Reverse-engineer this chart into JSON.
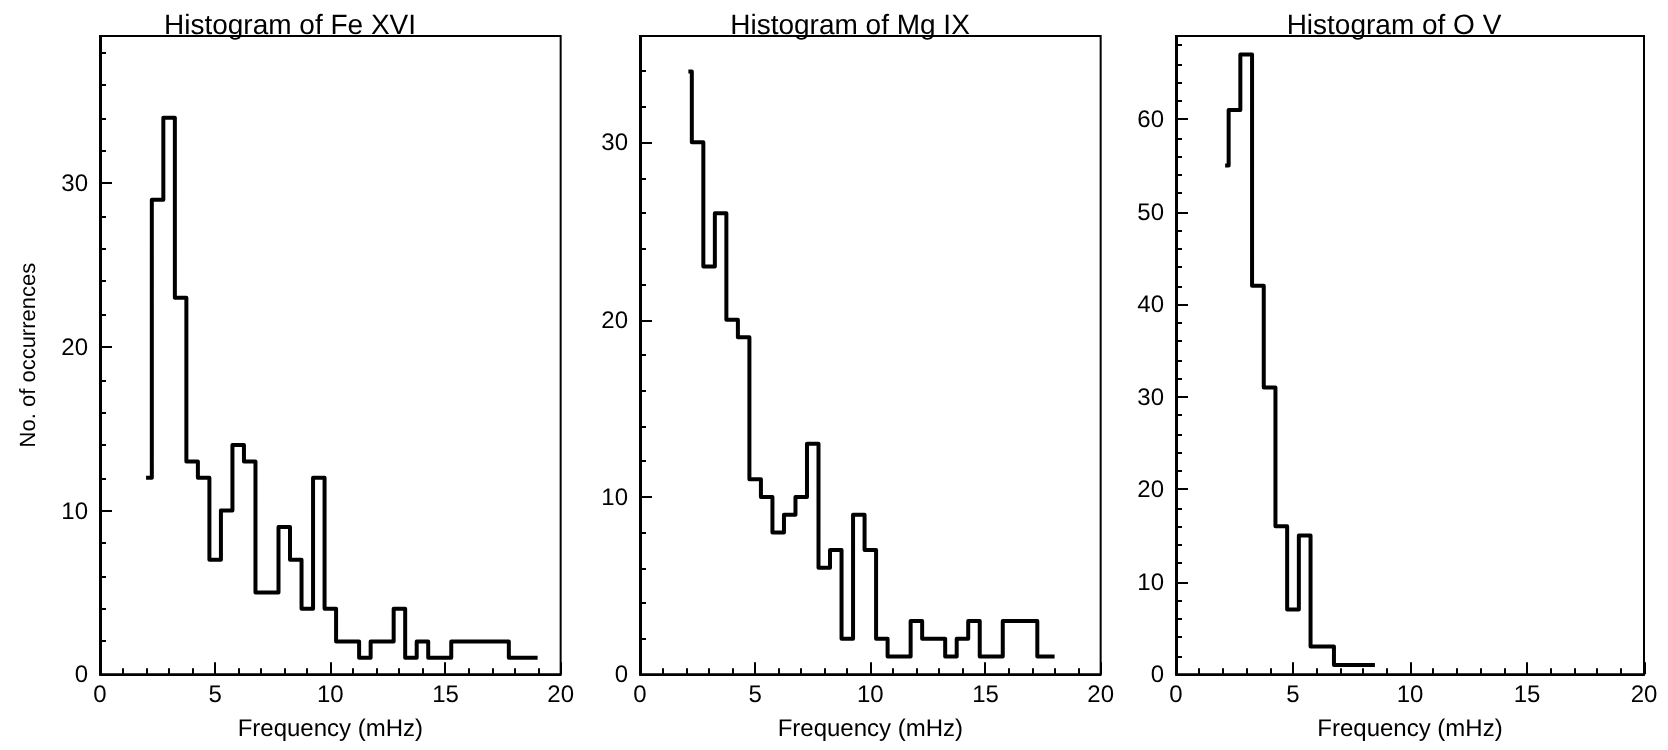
{
  "chart_data": [
    {
      "type": "histogram",
      "title": "Histogram of Fe XVI",
      "xlabel": "Frequency (mHz)",
      "ylabel": "No. of occurrences",
      "color": "#000000",
      "bins": [
        2.0,
        2.25,
        2.75,
        3.25,
        3.75,
        4.25,
        4.75,
        5.25,
        5.75,
        6.25,
        6.75,
        7.25,
        7.75,
        8.25,
        8.75,
        9.25,
        9.75,
        10.25,
        10.75,
        11.25,
        11.75,
        12.25,
        12.75,
        13.25,
        13.75,
        14.25,
        14.75,
        15.25,
        15.75,
        16.25,
        16.75,
        17.25,
        17.75,
        18.25,
        18.75,
        19.0
      ],
      "values": [
        12,
        29,
        34,
        23,
        13,
        12,
        7,
        10,
        14,
        13,
        5,
        5,
        9,
        7,
        4,
        12,
        4,
        2,
        2,
        1,
        2,
        2,
        4,
        1,
        2,
        1,
        1,
        2,
        2,
        2,
        2,
        2,
        1,
        1,
        1
      ],
      "xlim": [
        0,
        20
      ],
      "xticks": [
        0,
        5,
        10,
        15,
        20
      ],
      "ylim": [
        0,
        39
      ],
      "yticks": [
        0,
        10,
        20,
        30
      ],
      "grid": false
    },
    {
      "type": "histogram",
      "title": "Histogram of Mg IX",
      "xlabel": "Frequency (mHz)",
      "color": "#000000",
      "bins": [
        2.1,
        2.25,
        2.75,
        3.25,
        3.75,
        4.25,
        4.75,
        5.25,
        5.75,
        6.25,
        6.75,
        7.25,
        7.75,
        8.25,
        8.75,
        9.25,
        9.75,
        10.25,
        10.75,
        11.25,
        11.75,
        12.25,
        12.75,
        13.25,
        13.75,
        14.25,
        14.75,
        15.25,
        15.75,
        16.25,
        16.75,
        17.25,
        17.75,
        18.0
      ],
      "values": [
        34,
        30,
        23,
        26,
        20,
        19,
        11,
        10,
        8,
        9,
        10,
        13,
        6,
        7,
        2,
        9,
        7,
        2,
        1,
        1,
        3,
        2,
        2,
        1,
        2,
        3,
        1,
        1,
        3,
        3,
        3,
        1,
        1
      ],
      "xlim": [
        0,
        20
      ],
      "xticks": [
        0,
        5,
        10,
        15,
        20
      ],
      "ylim": [
        0,
        36
      ],
      "yticks": [
        0,
        10,
        20,
        30
      ],
      "grid": false
    },
    {
      "type": "histogram",
      "title": "Histogram of O V",
      "xlabel": "Frequency (mHz)",
      "color": "#000000",
      "bins": [
        2.1,
        2.25,
        2.75,
        3.25,
        3.75,
        4.25,
        4.75,
        5.25,
        5.75,
        6.25,
        6.75,
        7.25,
        7.75,
        8.25,
        8.5
      ],
      "values": [
        55,
        61,
        67,
        42,
        31,
        16,
        7,
        15,
        3,
        3,
        1,
        1,
        1,
        1
      ],
      "xlim": [
        0,
        20
      ],
      "xticks": [
        0,
        5,
        10,
        15,
        20
      ],
      "ylim": [
        0,
        69
      ],
      "yticks": [
        0,
        10,
        20,
        30,
        40,
        50,
        60
      ],
      "grid": false
    }
  ]
}
